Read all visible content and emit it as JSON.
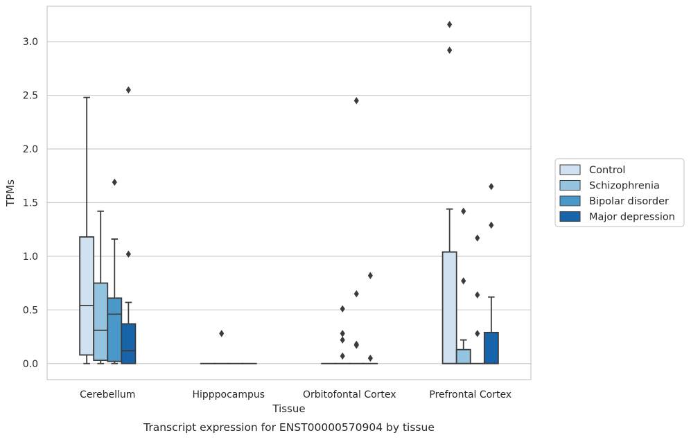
{
  "chart_data": {
    "type": "box",
    "title": "",
    "caption": "Transcript expression for ENST00000570904 by tissue",
    "xlabel": "Tissue",
    "ylabel": "TPMs",
    "categories": [
      "Cerebellum",
      "Hipppocampus",
      "Orbitofontal Cortex",
      "Prefrontal Cortex"
    ],
    "ylim": [
      -0.15,
      3.33
    ],
    "yticks": [
      0.0,
      0.5,
      1.0,
      1.5,
      2.0,
      2.5,
      3.0
    ],
    "ytick_labels": [
      "0.0",
      "0.5",
      "1.0",
      "1.5",
      "2.0",
      "2.5",
      "3.0"
    ],
    "grid": true,
    "legend_position": "right",
    "series": [
      {
        "name": "Control",
        "color": "#d0e1f2",
        "boxes": [
          {
            "whislo": 0.0,
            "q1": 0.08,
            "med": 0.54,
            "q3": 1.18,
            "whishi": 2.48,
            "fliers": []
          },
          {
            "whislo": 0.0,
            "q1": 0.0,
            "med": 0.0,
            "q3": 0.0,
            "whishi": 0.0,
            "fliers": []
          },
          {
            "whislo": 0.0,
            "q1": 0.0,
            "med": 0.0,
            "q3": 0.0,
            "whishi": 0.0,
            "fliers": []
          },
          {
            "whislo": 0.0,
            "q1": 0.0,
            "med": 0.0,
            "q3": 1.04,
            "whishi": 1.44,
            "fliers": [
              2.92,
              3.16
            ]
          }
        ]
      },
      {
        "name": "Schizophrenia",
        "color": "#94c4df",
        "boxes": [
          {
            "whislo": 0.0,
            "q1": 0.03,
            "med": 0.31,
            "q3": 0.75,
            "whishi": 1.42,
            "fliers": []
          },
          {
            "whislo": 0.0,
            "q1": 0.0,
            "med": 0.0,
            "q3": 0.0,
            "whishi": 0.0,
            "fliers": [
              0.28
            ]
          },
          {
            "whislo": 0.0,
            "q1": 0.0,
            "med": 0.0,
            "q3": 0.0,
            "whishi": 0.0,
            "fliers": [
              0.07,
              0.22,
              0.28,
              0.51
            ]
          },
          {
            "whislo": 0.0,
            "q1": 0.0,
            "med": 0.0,
            "q3": 0.13,
            "whishi": 0.22,
            "fliers": [
              0.77,
              1.42
            ]
          }
        ]
      },
      {
        "name": "Bipolar disorder",
        "color": "#4a98c9",
        "boxes": [
          {
            "whislo": 0.0,
            "q1": 0.02,
            "med": 0.46,
            "q3": 0.61,
            "whishi": 1.16,
            "fliers": [
              1.69
            ]
          },
          {
            "whislo": 0.0,
            "q1": 0.0,
            "med": 0.0,
            "q3": 0.0,
            "whishi": 0.0,
            "fliers": []
          },
          {
            "whislo": 0.0,
            "q1": 0.0,
            "med": 0.0,
            "q3": 0.0,
            "whishi": 0.0,
            "fliers": [
              0.17,
              0.18,
              0.65,
              2.45
            ]
          },
          {
            "whislo": 0.0,
            "q1": 0.0,
            "med": 0.0,
            "q3": 0.0,
            "whishi": 0.0,
            "fliers": [
              0.28,
              0.64,
              1.17
            ]
          }
        ]
      },
      {
        "name": "Major depression",
        "color": "#1764ab",
        "boxes": [
          {
            "whislo": 0.0,
            "q1": 0.0,
            "med": 0.12,
            "q3": 0.37,
            "whishi": 0.57,
            "fliers": [
              1.02,
              2.55
            ]
          },
          {
            "whislo": 0.0,
            "q1": 0.0,
            "med": 0.0,
            "q3": 0.0,
            "whishi": 0.0,
            "fliers": []
          },
          {
            "whislo": 0.0,
            "q1": 0.0,
            "med": 0.0,
            "q3": 0.0,
            "whishi": 0.0,
            "fliers": [
              0.05,
              0.82
            ]
          },
          {
            "whislo": 0.0,
            "q1": 0.0,
            "med": 0.0,
            "q3": 0.29,
            "whishi": 0.62,
            "fliers": [
              1.29,
              1.65
            ]
          }
        ]
      }
    ]
  }
}
